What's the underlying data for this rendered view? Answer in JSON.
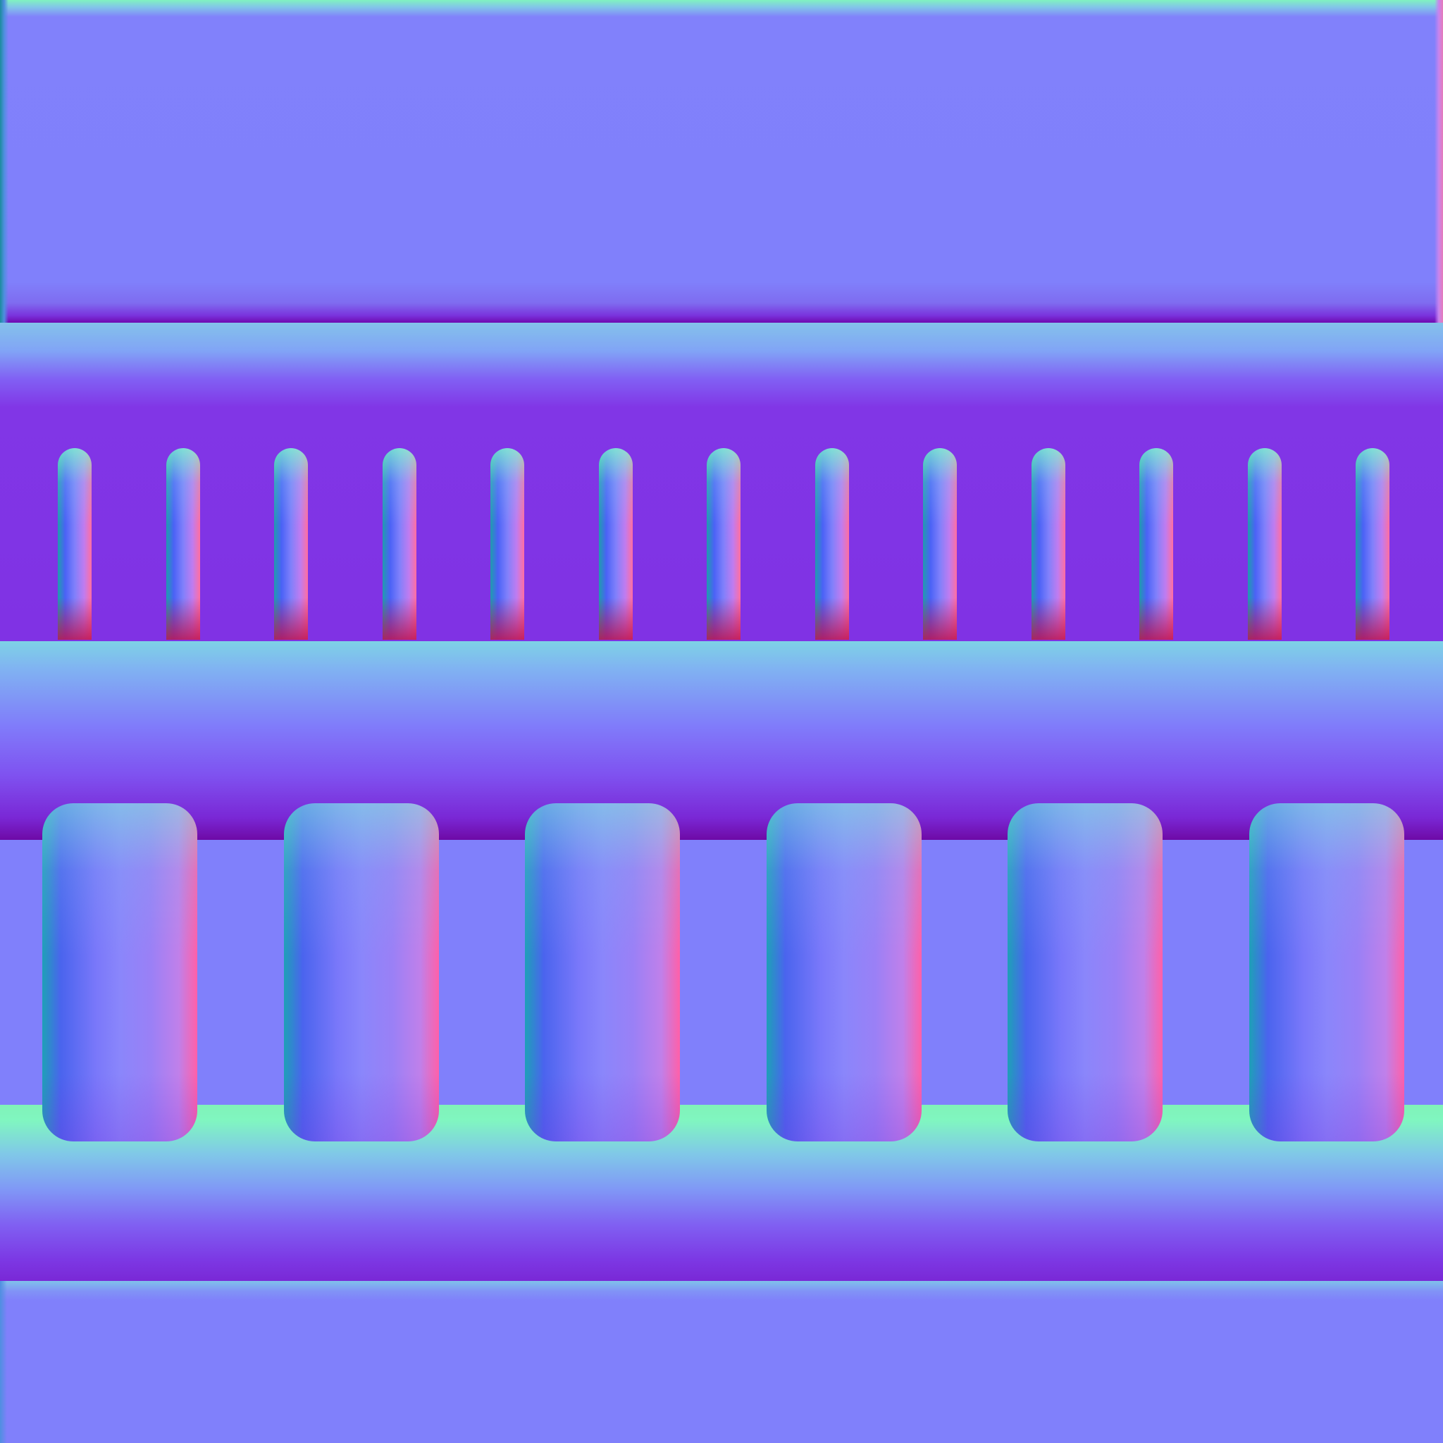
{
  "texture": {
    "kind": "normal-map",
    "base_color": "#8080fb",
    "peg_count": 13,
    "pill_count": 6,
    "colors": {
      "flat": "#8080fb",
      "channel": "#8032e4",
      "top_highlight": "#80f2c0",
      "bottom_shadow": "#6f0ab0",
      "left_edge": "#1ea0b8",
      "right_edge": "#ff60a8"
    }
  }
}
